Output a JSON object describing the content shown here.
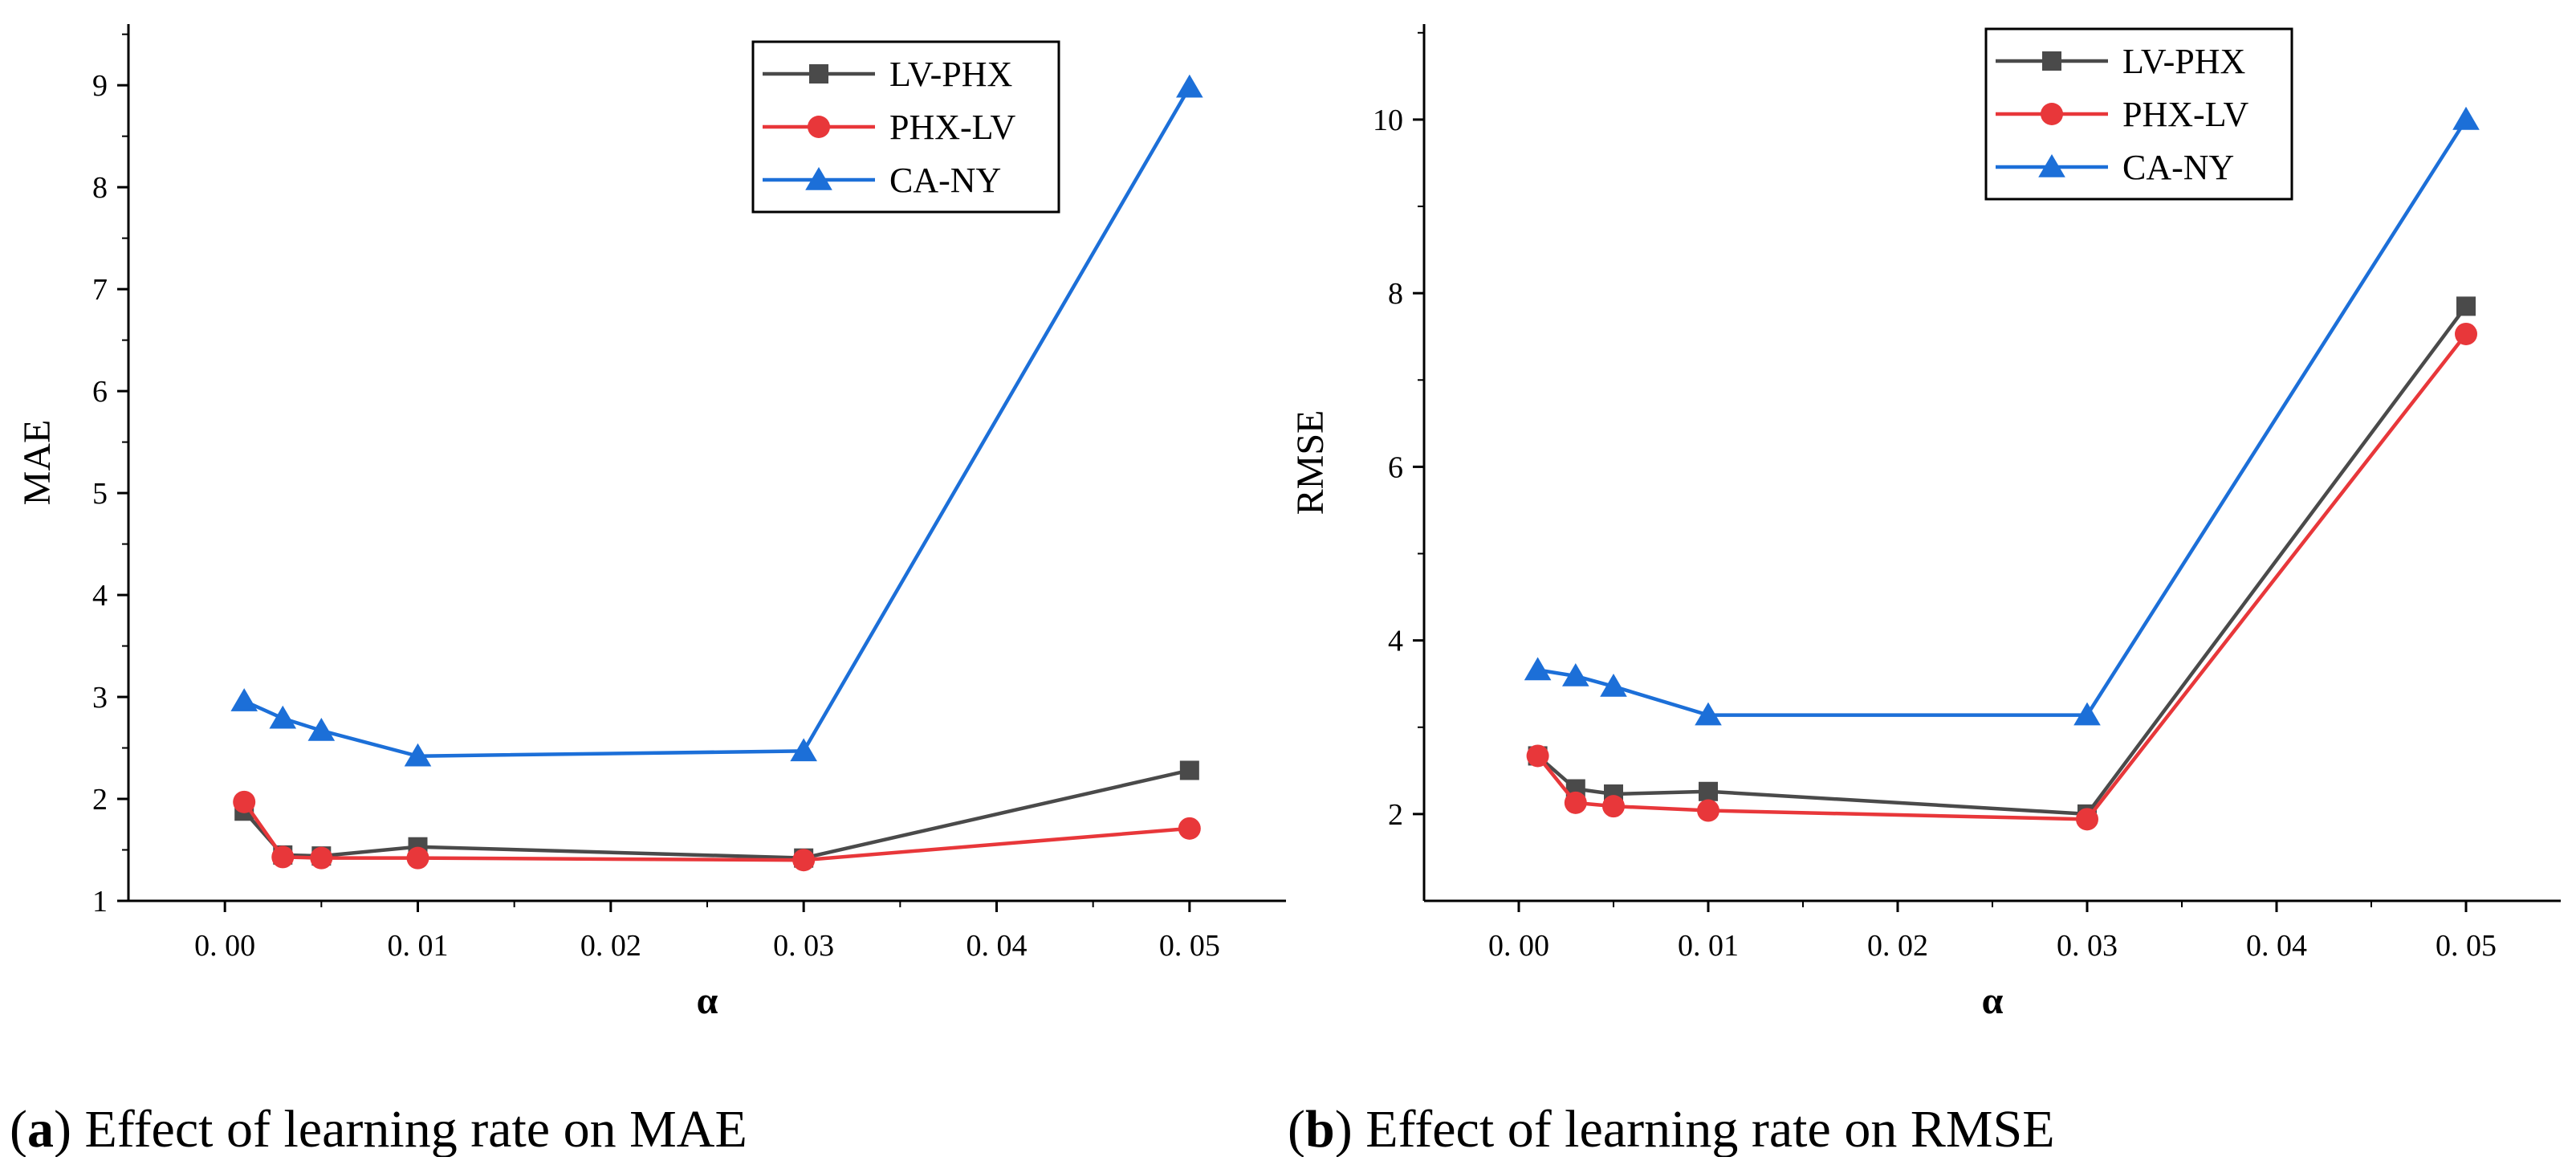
{
  "colors": {
    "LV-PHX": "#4a4a4a",
    "PHX-LV": "#e8373a",
    "CA-NY": "#1c6fd8"
  },
  "captions": [
    {
      "letter": "a",
      "text": " Effect of learning rate on MAE"
    },
    {
      "letter": "b",
      "text": " Effect of learning rate on RMSE"
    }
  ],
  "chart_data": [
    {
      "type": "line",
      "title": "",
      "xlabel": "α",
      "ylabel": "MAE",
      "xlim": [
        -0.005,
        0.055
      ],
      "ylim": [
        1,
        9.6
      ],
      "xticks": [
        0.0,
        0.01,
        0.02,
        0.03,
        0.04,
        0.05
      ],
      "xtick_labels": [
        "0. 00",
        "0. 01",
        "0. 02",
        "0. 03",
        "0. 04",
        "0. 05"
      ],
      "yticks": [
        1,
        2,
        3,
        4,
        5,
        6,
        7,
        8,
        9
      ],
      "ytick_labels": [
        "1",
        "2",
        "3",
        "4",
        "5",
        "6",
        "7",
        "8",
        "9"
      ],
      "legend_position": "top-right",
      "series": [
        {
          "name": "LV-PHX",
          "marker": "square",
          "x": [
            0.001,
            0.003,
            0.005,
            0.01,
            0.03,
            0.05
          ],
          "values": [
            1.88,
            1.45,
            1.44,
            1.53,
            1.42,
            2.28
          ]
        },
        {
          "name": "PHX-LV",
          "marker": "circle",
          "x": [
            0.001,
            0.003,
            0.005,
            0.01,
            0.03,
            0.05
          ],
          "values": [
            1.97,
            1.43,
            1.42,
            1.42,
            1.4,
            1.71
          ]
        },
        {
          "name": "CA-NY",
          "marker": "triangle",
          "x": [
            0.001,
            0.003,
            0.005,
            0.01,
            0.03,
            0.05
          ],
          "values": [
            2.96,
            2.79,
            2.67,
            2.42,
            2.47,
            8.98
          ]
        }
      ]
    },
    {
      "type": "line",
      "title": "",
      "xlabel": "α",
      "ylabel": "RMSE",
      "xlim": [
        -0.005,
        0.055
      ],
      "ylim": [
        1,
        11.1
      ],
      "xticks": [
        0.0,
        0.01,
        0.02,
        0.03,
        0.04,
        0.05
      ],
      "xtick_labels": [
        "0. 00",
        "0. 01",
        "0. 02",
        "0. 03",
        "0. 04",
        "0. 05"
      ],
      "yticks": [
        2,
        4,
        6,
        8,
        10
      ],
      "ytick_labels": [
        "2",
        "4",
        "6",
        "8",
        "10"
      ],
      "legend_position": "top-right",
      "series": [
        {
          "name": "LV-PHX",
          "marker": "square",
          "x": [
            0.001,
            0.003,
            0.005,
            0.01,
            0.03,
            0.05
          ],
          "values": [
            2.67,
            2.29,
            2.23,
            2.26,
            2.0,
            7.85
          ]
        },
        {
          "name": "PHX-LV",
          "marker": "circle",
          "x": [
            0.001,
            0.003,
            0.005,
            0.01,
            0.03,
            0.05
          ],
          "values": [
            2.67,
            2.13,
            2.09,
            2.04,
            1.94,
            7.53
          ]
        },
        {
          "name": "CA-NY",
          "marker": "triangle",
          "x": [
            0.001,
            0.003,
            0.005,
            0.01,
            0.03,
            0.05
          ],
          "values": [
            3.66,
            3.59,
            3.47,
            3.14,
            3.14,
            10.0
          ]
        }
      ]
    }
  ]
}
